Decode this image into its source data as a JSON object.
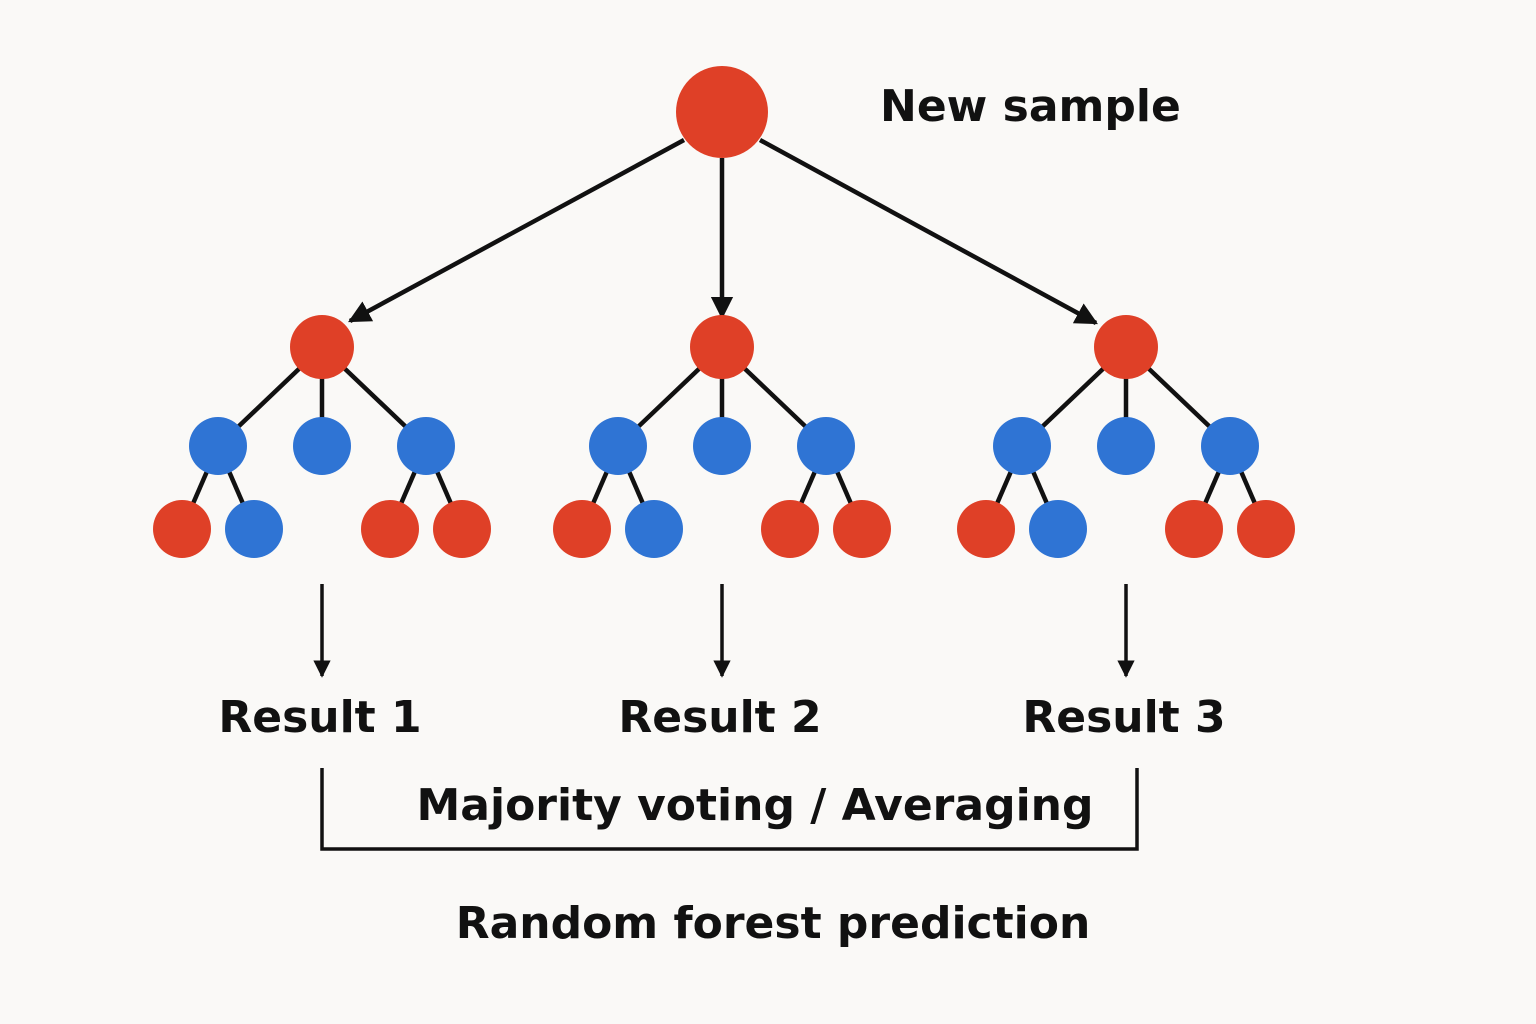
{
  "title": "New sample",
  "colors": {
    "red": "#df4027",
    "blue": "#2f74d4",
    "ink": "#111111",
    "background": "#faf9f7"
  },
  "trees": [
    {
      "name": "tree-1",
      "result_label": "Result 1",
      "root": "red",
      "level1": [
        "blue",
        "blue",
        "blue"
      ],
      "leaves": [
        [
          "red",
          "blue"
        ],
        [],
        [
          "red",
          "red"
        ]
      ]
    },
    {
      "name": "tree-2",
      "result_label": "Result 2",
      "root": "red",
      "level1": [
        "blue",
        "blue",
        "blue"
      ],
      "leaves": [
        [
          "red",
          "blue"
        ],
        [],
        [
          "red",
          "red"
        ]
      ]
    },
    {
      "name": "tree-3",
      "result_label": "Result 3",
      "root": "red",
      "level1": [
        "blue",
        "blue",
        "blue"
      ],
      "leaves": [
        [
          "red",
          "blue"
        ],
        [],
        [
          "red",
          "red"
        ]
      ]
    }
  ],
  "aggregation_label": "Majority voting / Averaging",
  "output_label": "Random forest prediction"
}
